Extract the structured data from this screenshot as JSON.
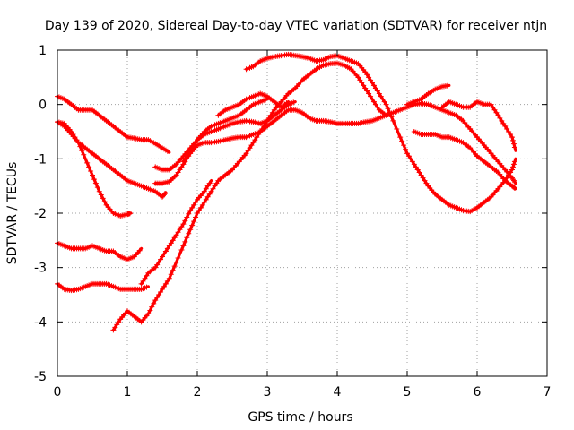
{
  "chart_data": {
    "type": "scatter",
    "title": "Day 139 of 2020, Sidereal Day-to-day VTEC variation (SDTVAR) for receiver ntjn",
    "xlabel": "GPS time / hours",
    "ylabel": "SDTVAR / TECUs",
    "xlim": [
      0,
      7
    ],
    "ylim": [
      -5,
      1
    ],
    "xticks": [
      0,
      1,
      2,
      3,
      4,
      5,
      6,
      7
    ],
    "yticks": [
      -5,
      -4,
      -3,
      -2,
      -1,
      0,
      1
    ],
    "xtick_labels": [
      "0",
      "1",
      "2",
      "3",
      "4",
      "5",
      "6",
      "7"
    ],
    "ytick_labels": [
      "-5",
      "-4",
      "-3",
      "-2",
      "-1",
      "0",
      "1"
    ],
    "grid": true,
    "marker_color": "#ff0000",
    "series": [
      {
        "name": "s1",
        "x": [
          0.0,
          0.1,
          0.2,
          0.3,
          0.4,
          0.5,
          0.6,
          0.7,
          0.8,
          0.9,
          1.0,
          1.1,
          1.2,
          1.3,
          1.4,
          1.5,
          1.6
        ],
        "y": [
          0.15,
          0.1,
          0.0,
          -0.1,
          -0.1,
          -0.1,
          -0.2,
          -0.3,
          -0.4,
          -0.5,
          -0.6,
          -0.62,
          -0.65,
          -0.65,
          -0.72,
          -0.8,
          -0.88
        ]
      },
      {
        "name": "s2",
        "x": [
          0.0,
          0.1,
          0.2,
          0.3,
          0.4,
          0.5,
          0.6,
          0.7,
          0.8,
          0.9,
          1.0,
          1.1,
          1.2,
          1.3,
          1.4,
          1.5,
          1.55
        ],
        "y": [
          -0.32,
          -0.4,
          -0.55,
          -0.7,
          -0.8,
          -0.9,
          -1.0,
          -1.1,
          -1.2,
          -1.3,
          -1.4,
          -1.45,
          -1.5,
          -1.55,
          -1.6,
          -1.7,
          -1.62
        ]
      },
      {
        "name": "s3",
        "x": [
          0.0,
          0.1,
          0.2,
          0.3,
          0.4,
          0.5,
          0.6,
          0.7,
          0.8,
          0.9,
          1.0,
          1.05
        ],
        "y": [
          -0.32,
          -0.35,
          -0.5,
          -0.7,
          -1.0,
          -1.3,
          -1.6,
          -1.85,
          -2.0,
          -2.05,
          -2.02,
          -2.0
        ]
      },
      {
        "name": "s4",
        "x": [
          0.0,
          0.1,
          0.2,
          0.3,
          0.4,
          0.5,
          0.6,
          0.7,
          0.8,
          0.9,
          1.0,
          1.1,
          1.2
        ],
        "y": [
          -2.55,
          -2.6,
          -2.65,
          -2.65,
          -2.65,
          -2.6,
          -2.65,
          -2.7,
          -2.7,
          -2.8,
          -2.85,
          -2.8,
          -2.65
        ]
      },
      {
        "name": "s5",
        "x": [
          0.0,
          0.1,
          0.2,
          0.3,
          0.4,
          0.5,
          0.6,
          0.7,
          0.8,
          0.9,
          1.0,
          1.1,
          1.2,
          1.3
        ],
        "y": [
          -3.3,
          -3.4,
          -3.42,
          -3.4,
          -3.35,
          -3.3,
          -3.3,
          -3.3,
          -3.35,
          -3.4,
          -3.4,
          -3.4,
          -3.4,
          -3.35
        ]
      },
      {
        "name": "s6",
        "x": [
          0.8,
          0.9,
          1.0,
          1.1,
          1.2,
          1.3,
          1.4,
          1.5,
          1.6,
          1.7,
          1.8,
          1.9,
          2.0,
          2.1,
          2.2,
          2.3,
          2.4,
          2.5,
          2.6,
          2.7,
          2.8,
          2.9,
          3.0,
          3.1,
          3.2,
          3.3,
          3.4,
          3.5,
          3.6,
          3.7,
          3.8,
          3.9,
          4.0,
          4.1,
          4.2,
          4.3,
          4.4,
          4.5,
          4.6,
          4.7
        ],
        "y": [
          -4.15,
          -3.95,
          -3.8,
          -3.9,
          -4.0,
          -3.85,
          -3.6,
          -3.4,
          -3.2,
          -2.9,
          -2.6,
          -2.3,
          -2.0,
          -1.8,
          -1.6,
          -1.4,
          -1.3,
          -1.2,
          -1.05,
          -0.9,
          -0.7,
          -0.5,
          -0.3,
          -0.1,
          0.05,
          0.2,
          0.3,
          0.45,
          0.55,
          0.65,
          0.72,
          0.75,
          0.76,
          0.72,
          0.65,
          0.5,
          0.3,
          0.1,
          -0.1,
          -0.2
        ]
      },
      {
        "name": "s7",
        "x": [
          1.2,
          1.3,
          1.4,
          1.5,
          1.6,
          1.7,
          1.8,
          1.9,
          2.0,
          2.1,
          2.2
        ],
        "y": [
          -3.3,
          -3.1,
          -3.0,
          -2.8,
          -2.6,
          -2.4,
          -2.2,
          -1.95,
          -1.75,
          -1.6,
          -1.4
        ]
      },
      {
        "name": "s8",
        "x": [
          1.4,
          1.5,
          1.6,
          1.7,
          1.8,
          1.9,
          2.0,
          2.1,
          2.2,
          2.3,
          2.4,
          2.5,
          2.6,
          2.7,
          2.8,
          2.9,
          3.0,
          3.1,
          3.2,
          3.3,
          3.4,
          3.5,
          3.6,
          3.7,
          3.8,
          3.9,
          4.0,
          4.1,
          4.2,
          4.3,
          4.4,
          4.5,
          4.6,
          4.7,
          4.8,
          4.9,
          5.0,
          5.1,
          5.2,
          5.3,
          5.4,
          5.5,
          5.6,
          5.7,
          5.8,
          5.9,
          6.0,
          6.1,
          6.2,
          6.3,
          6.4,
          6.5,
          6.55
        ],
        "y": [
          -1.45,
          -1.45,
          -1.42,
          -1.3,
          -1.1,
          -0.9,
          -0.75,
          -0.7,
          -0.7,
          -0.68,
          -0.65,
          -0.62,
          -0.6,
          -0.6,
          -0.55,
          -0.5,
          -0.4,
          -0.3,
          -0.2,
          -0.1,
          -0.1,
          -0.15,
          -0.25,
          -0.3,
          -0.3,
          -0.32,
          -0.35,
          -0.35,
          -0.35,
          -0.35,
          -0.32,
          -0.3,
          -0.25,
          -0.2,
          -0.15,
          -0.1,
          -0.05,
          0.0,
          0.02,
          0.0,
          -0.05,
          -0.1,
          -0.15,
          -0.2,
          -0.3,
          -0.45,
          -0.6,
          -0.75,
          -0.9,
          -1.05,
          -1.2,
          -1.35,
          -1.45
        ]
      },
      {
        "name": "s9",
        "x": [
          1.4,
          1.5,
          1.6,
          1.7,
          1.8,
          1.9,
          2.0,
          2.1,
          2.2,
          2.3,
          2.4,
          2.5,
          2.6,
          2.7,
          2.8,
          2.9,
          3.0,
          3.1,
          3.2,
          3.3,
          3.4
        ],
        "y": [
          -1.15,
          -1.2,
          -1.2,
          -1.1,
          -0.95,
          -0.8,
          -0.65,
          -0.55,
          -0.5,
          -0.45,
          -0.4,
          -0.35,
          -0.32,
          -0.3,
          -0.32,
          -0.35,
          -0.3,
          -0.2,
          -0.1,
          0.0,
          0.05
        ]
      },
      {
        "name": "s10",
        "x": [
          2.7,
          2.8,
          2.9,
          3.0,
          3.1,
          3.2,
          3.3,
          3.4,
          3.5,
          3.6,
          3.7,
          3.8,
          3.9,
          4.0,
          4.1,
          4.2,
          4.3,
          4.4,
          4.5,
          4.6,
          4.7,
          4.8,
          4.9,
          5.0,
          5.1,
          5.2,
          5.3,
          5.4,
          5.5,
          5.6,
          5.7,
          5.8,
          5.9,
          6.0,
          6.1,
          6.2,
          6.3,
          6.4,
          6.5,
          6.55
        ],
        "y": [
          0.65,
          0.7,
          0.8,
          0.85,
          0.88,
          0.9,
          0.92,
          0.9,
          0.88,
          0.85,
          0.8,
          0.82,
          0.88,
          0.9,
          0.85,
          0.8,
          0.75,
          0.6,
          0.4,
          0.2,
          0.0,
          -0.3,
          -0.6,
          -0.9,
          -1.1,
          -1.3,
          -1.5,
          -1.65,
          -1.75,
          -1.85,
          -1.9,
          -1.95,
          -1.97,
          -1.9,
          -1.8,
          -1.7,
          -1.55,
          -1.4,
          -1.2,
          -1.0
        ]
      },
      {
        "name": "s11",
        "x": [
          2.3,
          2.4,
          2.5,
          2.6,
          2.7,
          2.8,
          2.9,
          3.0,
          3.1,
          3.2,
          3.3
        ],
        "y": [
          -0.2,
          -0.1,
          -0.05,
          0.0,
          0.1,
          0.15,
          0.2,
          0.15,
          0.05,
          -0.05,
          0.05
        ]
      },
      {
        "name": "s12",
        "x": [
          1.8,
          1.9,
          2.0,
          2.1,
          2.2,
          2.3,
          2.4,
          2.5,
          2.6,
          2.7,
          2.8,
          2.9,
          3.0
        ],
        "y": [
          -1.05,
          -0.85,
          -0.65,
          -0.5,
          -0.4,
          -0.35,
          -0.3,
          -0.25,
          -0.2,
          -0.1,
          0.0,
          0.05,
          0.1
        ]
      },
      {
        "name": "s13",
        "x": [
          5.1,
          5.2,
          5.3,
          5.4,
          5.5,
          5.6,
          5.7,
          5.8,
          5.9,
          6.0,
          6.1,
          6.2,
          6.3,
          6.4,
          6.5,
          6.55
        ],
        "y": [
          -0.5,
          -0.55,
          -0.55,
          -0.55,
          -0.6,
          -0.6,
          -0.65,
          -0.7,
          -0.8,
          -0.95,
          -1.05,
          -1.15,
          -1.25,
          -1.4,
          -1.5,
          -1.55
        ]
      },
      {
        "name": "s14",
        "x": [
          5.5,
          5.6,
          5.7,
          5.8,
          5.9,
          6.0,
          6.1,
          6.2,
          6.3,
          6.4,
          6.5,
          6.55
        ],
        "y": [
          -0.05,
          0.05,
          0.0,
          -0.05,
          -0.05,
          0.05,
          0.0,
          0.0,
          -0.2,
          -0.4,
          -0.6,
          -0.85
        ]
      },
      {
        "name": "s15",
        "x": [
          5.0,
          5.1,
          5.2,
          5.3,
          5.4,
          5.5,
          5.6
        ],
        "y": [
          0.0,
          0.05,
          0.1,
          0.2,
          0.28,
          0.33,
          0.35
        ]
      }
    ]
  }
}
